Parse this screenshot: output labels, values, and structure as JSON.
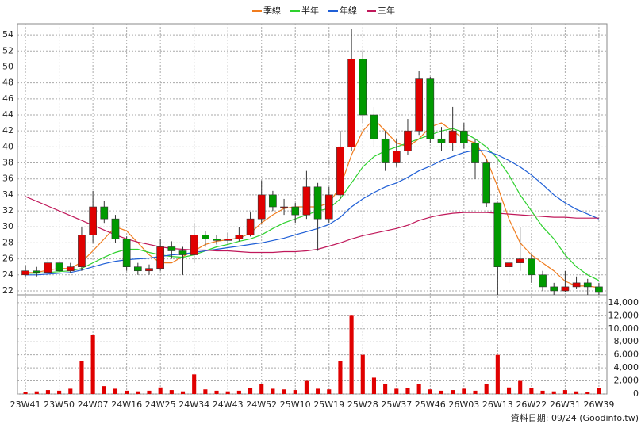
{
  "chart_data": {
    "type": "candlestick",
    "legend": "top",
    "grid": true,
    "up_color": "#e00000",
    "down_color": "#009a00",
    "categories": [
      "23W41",
      null,
      null,
      "23W50",
      null,
      null,
      "24W07",
      null,
      null,
      "24W16",
      null,
      null,
      "24W25",
      null,
      null,
      "24W34",
      null,
      null,
      "24W43",
      null,
      null,
      "24W52",
      null,
      null,
      "25W10",
      null,
      null,
      "25W19",
      null,
      null,
      "25W28",
      null,
      null,
      "25W37",
      null,
      null,
      "25W46",
      null,
      null,
      "26W03",
      null,
      null,
      "26W13",
      null,
      null,
      "26W22",
      null,
      null,
      "26W31",
      null,
      null,
      "26W39"
    ],
    "open": [
      24,
      24.5,
      24.3,
      25.5,
      24.5,
      25,
      29,
      32.5,
      31,
      28.5,
      25,
      24.5,
      24.8,
      27.5,
      27,
      26.5,
      29,
      28.5,
      28.3,
      28.5,
      29,
      31,
      34,
      32.5,
      32.5,
      31.5,
      35,
      31,
      34,
      40,
      51,
      44,
      41,
      38,
      39.5,
      42,
      48.5,
      41,
      40.5,
      42,
      40.5,
      38,
      33,
      25,
      25.5,
      26,
      24,
      22.5,
      22,
      22.5,
      23,
      22.5
    ],
    "high": [
      25.2,
      25,
      26,
      25.8,
      25.5,
      30,
      34.5,
      33.2,
      31.5,
      28.8,
      25.5,
      25.3,
      28.5,
      28.2,
      27.5,
      30.5,
      29.5,
      29,
      29.3,
      30,
      31.8,
      35.8,
      34.5,
      33.5,
      33,
      37,
      35.5,
      35,
      42,
      54.8,
      52,
      45,
      42,
      41,
      43.5,
      49.5,
      48.8,
      42.5,
      45,
      43,
      41,
      38.5,
      33,
      27,
      30,
      26.5,
      24.5,
      23,
      24.5,
      23.8,
      23.5,
      23
    ],
    "low": [
      23.8,
      23.8,
      24,
      24.2,
      24.2,
      24.5,
      28,
      30.5,
      28,
      24.5,
      24,
      24,
      24.5,
      26,
      24,
      25.5,
      27.5,
      27.8,
      27.8,
      28.2,
      28.8,
      30.5,
      32,
      31.5,
      30.5,
      31,
      27,
      30.5,
      33.5,
      39.5,
      43,
      40,
      37,
      37.5,
      39,
      41.5,
      40.5,
      39.5,
      39.5,
      39.8,
      36,
      32.5,
      21.5,
      23,
      24.5,
      23,
      22,
      21.5,
      21.8,
      22.3,
      21.5,
      21.5
    ],
    "close": [
      24.5,
      24.3,
      25.5,
      24.5,
      25,
      29,
      32.5,
      31,
      28.5,
      25,
      24.5,
      24.8,
      27.5,
      27,
      26.5,
      29,
      28.5,
      28.3,
      28.5,
      29,
      31,
      34,
      32.5,
      32.5,
      31.5,
      35,
      31,
      34,
      40,
      51,
      44,
      41,
      38,
      39.5,
      42,
      48.5,
      41,
      40.5,
      42,
      40.5,
      38,
      33,
      25,
      25.5,
      26,
      24,
      22.5,
      22,
      22.5,
      23,
      22.5,
      21.8
    ],
    "series": [
      {
        "name": "季線",
        "color": "#f07c1e",
        "values": [
          24.3,
          24.3,
          24.6,
          24.8,
          24.8,
          25.6,
          27,
          28.5,
          30,
          29.5,
          28,
          26.5,
          25.5,
          25.5,
          26.3,
          27,
          27.8,
          28.2,
          28.4,
          28.6,
          29.2,
          30.5,
          31.5,
          32.3,
          32.5,
          32.5,
          32.5,
          33,
          35,
          39,
          42,
          43.5,
          42,
          40.5,
          40,
          41,
          42.5,
          43,
          42,
          41,
          40.5,
          38.5,
          35,
          31,
          28,
          26.5,
          25.5,
          24.5,
          23.2,
          22.6,
          22.6,
          22.4
        ]
      },
      {
        "name": "半年",
        "color": "#2ed12e",
        "values": [
          24.2,
          24.2,
          24.3,
          24.4,
          24.5,
          24.8,
          25.5,
          26.2,
          26.8,
          27.2,
          27.2,
          26.8,
          26.5,
          26.3,
          26.2,
          26.5,
          27,
          27.5,
          27.8,
          28.2,
          28.5,
          29,
          29.8,
          30.5,
          31,
          31.5,
          32,
          32.3,
          33.5,
          35.5,
          37.5,
          38.8,
          39.5,
          40,
          40.5,
          41,
          41.5,
          42,
          42.3,
          41.8,
          41,
          40,
          38.5,
          36.5,
          34,
          32,
          30,
          28.5,
          26.5,
          25,
          24,
          23.3
        ]
      },
      {
        "name": "年線",
        "color": "#1f5fd6",
        "values": [
          24,
          24,
          24.1,
          24.2,
          24.3,
          24.6,
          25,
          25.4,
          25.7,
          25.9,
          26,
          26.1,
          26.3,
          26.5,
          26.6,
          26.8,
          27,
          27.2,
          27.4,
          27.6,
          27.8,
          28,
          28.3,
          28.6,
          29,
          29.4,
          29.8,
          30.3,
          31.2,
          32.5,
          33.5,
          34.3,
          35,
          35.5,
          36.2,
          37,
          37.6,
          38.3,
          38.8,
          39.3,
          39.6,
          39.5,
          39,
          38.3,
          37.5,
          36.5,
          35.3,
          34,
          33,
          32.2,
          31.6,
          31
        ]
      },
      {
        "name": "三年",
        "color": "#c0185a",
        "values": [
          33.8,
          33.2,
          32.6,
          32,
          31.4,
          30.8,
          30.2,
          29.6,
          29,
          28.5,
          28.1,
          27.8,
          27.5,
          27.3,
          27.2,
          27.1,
          27.1,
          27,
          27,
          26.9,
          26.8,
          26.8,
          26.8,
          26.9,
          26.9,
          27,
          27.2,
          27.6,
          28,
          28.5,
          28.9,
          29.2,
          29.5,
          29.8,
          30.2,
          30.8,
          31.2,
          31.5,
          31.7,
          31.8,
          31.8,
          31.8,
          31.7,
          31.6,
          31.5,
          31.4,
          31.3,
          31.2,
          31.2,
          31.1,
          31.1,
          31.1
        ]
      }
    ],
    "ylim": [
      21.5,
      55.4
    ],
    "yticks": [
      22,
      24,
      26,
      28,
      30,
      32,
      34,
      36,
      38,
      40,
      42,
      44,
      46,
      48,
      50,
      52,
      54
    ],
    "volume": {
      "color": "#e00000",
      "values": [
        300,
        400,
        600,
        500,
        800,
        5000,
        9000,
        1200,
        800,
        500,
        400,
        500,
        1000,
        600,
        400,
        3000,
        700,
        500,
        400,
        500,
        900,
        1500,
        800,
        700,
        600,
        2000,
        800,
        700,
        5000,
        12000,
        6000,
        2500,
        1500,
        800,
        900,
        1500,
        700,
        500,
        600,
        800,
        500,
        1500,
        6000,
        1000,
        2000,
        900,
        500,
        400,
        600,
        400,
        300,
        900
      ],
      "ylim": [
        0,
        15200
      ],
      "yticks": [
        0,
        {
          "value": 2000,
          "label": "2,000"
        },
        {
          "value": 4000,
          "label": "4,000"
        },
        {
          "value": 6000,
          "label": "6,000"
        },
        {
          "value": 8000,
          "label": "8,000"
        },
        {
          "value": 10000,
          "label": "10,000"
        },
        {
          "value": 12000,
          "label": "12,000"
        },
        {
          "value": 14000,
          "label": "14,000"
        }
      ]
    },
    "footnote": "資料日期: 09/24 (Goodinfo.tw)"
  }
}
